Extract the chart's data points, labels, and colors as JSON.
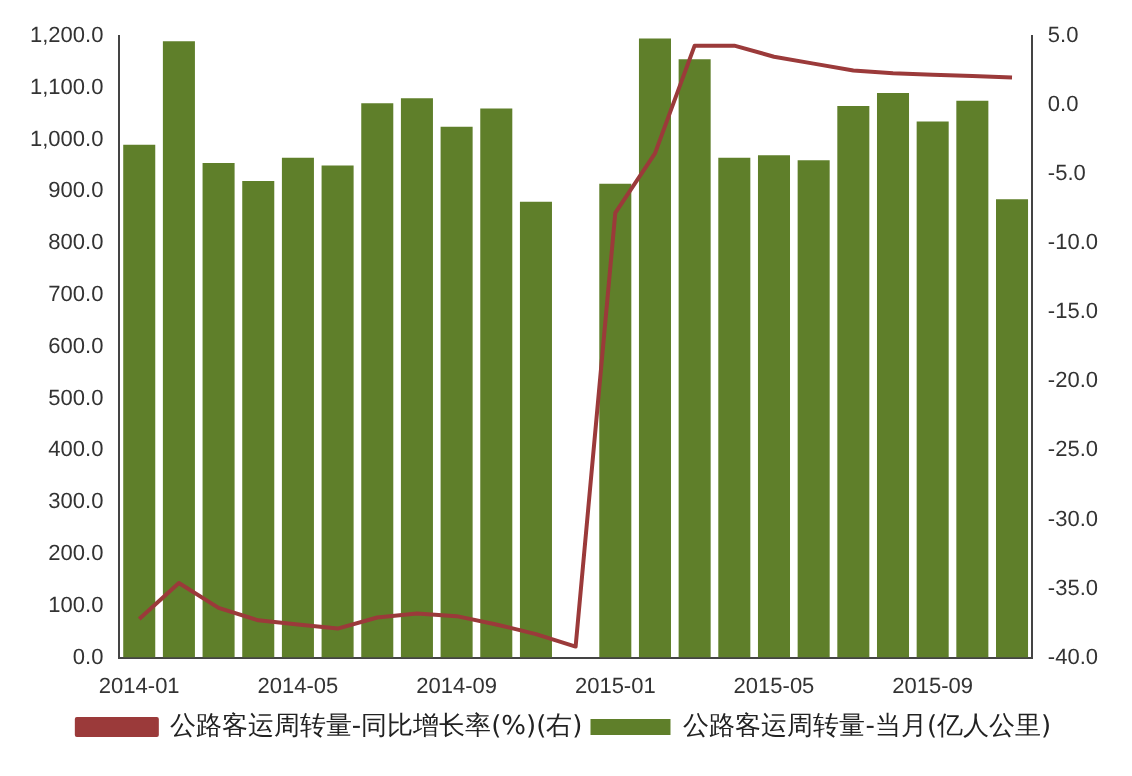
{
  "chart_data": {
    "type": "bar",
    "categories": [
      "2014-01",
      null,
      null,
      null,
      "2014-05",
      null,
      null,
      null,
      "2014-09",
      null,
      null,
      null,
      "2015-01",
      null,
      null,
      null,
      "2015-05",
      null,
      null,
      null,
      "2015-09",
      null,
      null
    ],
    "series": [
      {
        "name": "公路客运周转量-同比增长率(%)(右)",
        "type": "line",
        "axis": "y2",
        "color": "#9b3a3a",
        "values": [
          -37.2,
          -34.6,
          -36.4,
          -37.3,
          -37.6,
          -37.9,
          -37.1,
          -36.8,
          -37.0,
          -37.6,
          -38.3,
          -39.2,
          -7.8,
          -3.5,
          4.3,
          4.3,
          3.5,
          3.0,
          2.5,
          2.3,
          2.2,
          2.1,
          2.0
        ]
      },
      {
        "name": "公路客运周转量-当月(亿人公里)",
        "color": "#5f7f2a",
        "values": [
          990,
          1190,
          955,
          920,
          965,
          950,
          1070,
          1080,
          1025,
          1060,
          880,
          null,
          915,
          1195,
          1155,
          965,
          970,
          960,
          1065,
          1090,
          1035,
          1075,
          885
        ]
      }
    ],
    "ylim": [
      0,
      1200
    ],
    "yticks": [
      {
        "value": 0,
        "label": "0.0"
      },
      {
        "value": 100,
        "label": "100.0"
      },
      {
        "value": 200,
        "label": "200.0"
      },
      {
        "value": 300,
        "label": "300.0"
      },
      {
        "value": 400,
        "label": "400.0"
      },
      {
        "value": 500,
        "label": "500.0"
      },
      {
        "value": 600,
        "label": "600.0"
      },
      {
        "value": 700,
        "label": "700.0"
      },
      {
        "value": 800,
        "label": "800.0"
      },
      {
        "value": 900,
        "label": "900.0"
      },
      {
        "value": 1000,
        "label": "1,000.0"
      },
      {
        "value": 1100,
        "label": "1,100.0"
      },
      {
        "value": 1200,
        "label": "1,200.0"
      }
    ],
    "y2lim": [
      -40,
      5
    ],
    "y2ticks": [
      {
        "value": -40,
        "label": "-40.0"
      },
      {
        "value": -35,
        "label": "-35.0"
      },
      {
        "value": -30,
        "label": "-30.0"
      },
      {
        "value": -25,
        "label": "-25.0"
      },
      {
        "value": -20,
        "label": "-20.0"
      },
      {
        "value": -15,
        "label": "-15.0"
      },
      {
        "value": -10,
        "label": "-10.0"
      },
      {
        "value": -5,
        "label": "-5.0"
      },
      {
        "value": 0,
        "label": "0.0"
      },
      {
        "value": 5,
        "label": "5.0"
      }
    ],
    "grid": false,
    "legend": "bottom",
    "marker": "none",
    "line_style": "solid"
  }
}
